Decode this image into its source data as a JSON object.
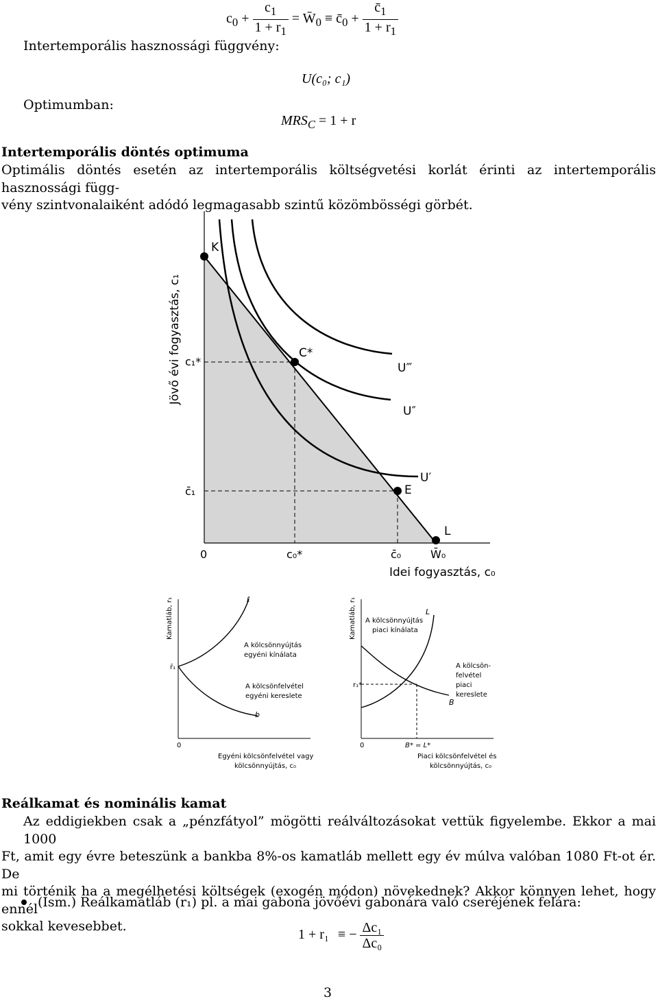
{
  "top": {
    "label_utility": "Intertemporális hasznossági függvény:",
    "eq1_left": "c",
    "eq1_plus": "+",
    "eq1_num": "c",
    "eq1_den": "1 + r",
    "eq1_mid": "= W̄",
    "eq1_equiv": "≡ c̄",
    "eq1_num2": "c̄",
    "eq1_den2": "1 + r",
    "utility_expr": "U(c₀; c₁)",
    "label_optimum": "Optimumban:",
    "mrs_expr": "MRS",
    "mrs_sub": "C",
    "mrs_rhs": "= 1 + r"
  },
  "section1": {
    "heading": "Intertemporális döntés optimuma",
    "line1": "Optimális döntés esetén az intertemporális költségvetési korlát érinti az intertemporális hasznossági függ-",
    "line2": "vény szintvonalaiként adódó legmagasabb szintű közömbösségi görbét."
  },
  "figure1": {
    "ylabel": "Jövő évi fogyasztás, c₁",
    "xlabel": "Idei fogyasztás, c₀",
    "origin": "0",
    "pt_K": "K",
    "pt_C": "C*",
    "pt_E": "E",
    "pt_L": "L",
    "tick_c1star": "c₁*",
    "tick_c1bar": "c̄₁",
    "tick_c0star": "c₀*",
    "tick_c0bar": "c̄₀",
    "tick_W0": "W̄₀",
    "curve_U3": "U‴",
    "curve_U2": "U″",
    "curve_U1": "U′"
  },
  "figure2": {
    "left": {
      "ylabel": "Kamatláb, r₁",
      "curve_top": "ℓ",
      "curve_bottom": "b",
      "tick_r": "r̄₁",
      "origin": "0",
      "label_supply_1": "A kölcsönnyújtás",
      "label_supply_2": "egyéni kínálata",
      "label_demand_1": "A kölcsönfelvétel",
      "label_demand_2": "egyéni kereslete",
      "xlabel_1": "Egyéni kölcsönfelvétel vagy",
      "xlabel_2": "kölcsönnyújtás, c₀"
    },
    "right": {
      "ylabel": "Kamatláb, r₁",
      "curve_L": "L",
      "curve_B": "B",
      "tick_r": "r₁*",
      "origin": "0",
      "tick_BL": "B* = L*",
      "label_supply_1": "A kölcsönnyújtás",
      "label_supply_2": "piaci kínálata",
      "label_demand_1": "A kölcsön-",
      "label_demand_2": "felvétel",
      "label_demand_3": "piaci",
      "label_demand_4": "kereslete",
      "xlabel_1": "Piaci kölcsönfelvétel és",
      "xlabel_2": "kölcsönnyújtás, c₀"
    }
  },
  "section2": {
    "heading": "Reálkamat és nominális kamat",
    "line1": "Az eddigiekben csak a „pénzfátyol” mögötti reálváltozásokat vettük figyelembe. Ekkor a mai 1000",
    "line2": "Ft, amit egy évre beteszünk a bankba 8%-os kamatláb mellett egy év múlva valóban 1080 Ft-ot ér. De",
    "line3": "mi történik ha a megélhetési költségek (exogén módon) növekednek? Akkor könnyen lehet, hogy ennél",
    "line4": "sokkal kevesebbet.",
    "bullet_text": "(Ism.) Reálkamatláb (r₁) pl. a mai gabona jövőévi gabonára való cseréjének felára:",
    "eq_lhs": "1 + r₁",
    "eq_equiv": "≡ −",
    "eq_num": "Δc₁",
    "eq_den": "Δc₀"
  },
  "page_number": "3"
}
